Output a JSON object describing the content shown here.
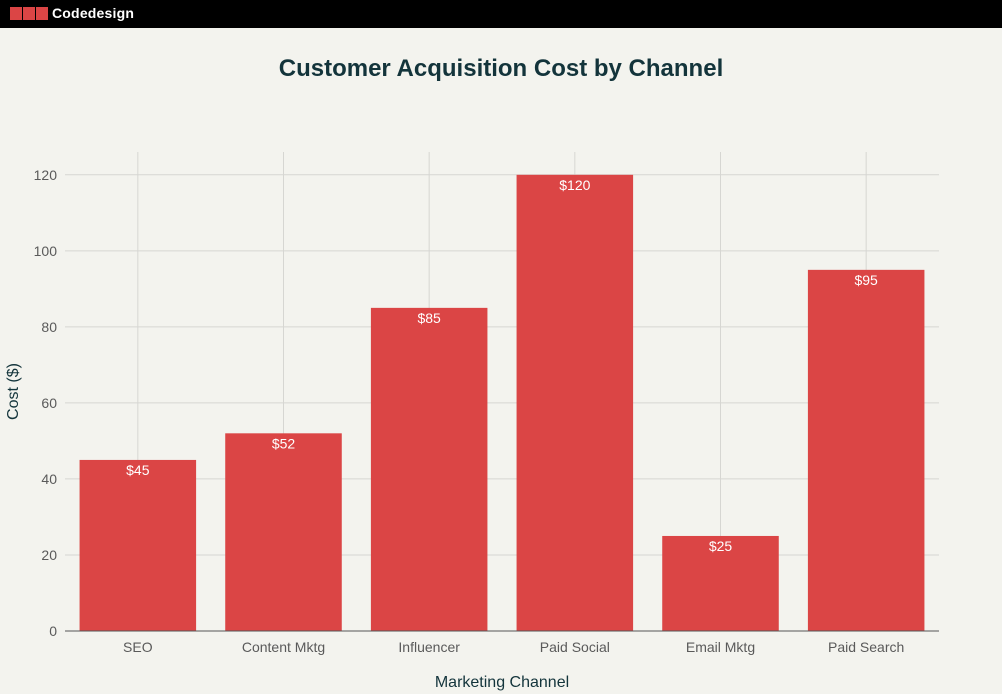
{
  "header": {
    "brand": "Codedesign"
  },
  "chart_data": {
    "type": "bar",
    "title": "Customer Acquisition Cost by Channel",
    "xlabel": "Marketing Channel",
    "ylabel": "Cost ($)",
    "categories": [
      "SEO",
      "Content Mktg",
      "Influencer",
      "Paid Social",
      "Email Mktg",
      "Paid Search"
    ],
    "values": [
      45,
      52,
      85,
      120,
      25,
      95
    ],
    "data_labels": [
      "$45",
      "$52",
      "$85",
      "$120",
      "$25",
      "$95"
    ],
    "ylim": [
      0,
      126
    ],
    "yticks": [
      0,
      20,
      40,
      60,
      80,
      100,
      120
    ],
    "bar_color": "#db4545",
    "grid": true,
    "legend": "none"
  }
}
